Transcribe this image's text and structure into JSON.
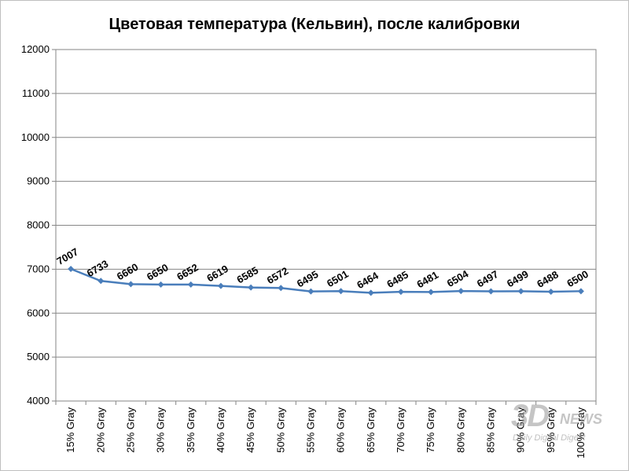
{
  "chart_data": {
    "type": "line",
    "title": "Цветовая температура (Кельвин),  после калибровки",
    "categories": [
      "15% Gray",
      "20% Gray",
      "25% Gray",
      "30% Gray",
      "35% Gray",
      "40% Gray",
      "45% Gray",
      "50% Gray",
      "55% Gray",
      "60% Gray",
      "65% Gray",
      "70% Gray",
      "75% Gray",
      "80% Gray",
      "85% Gray",
      "90% Gray",
      "95% Gray",
      "100% Gray"
    ],
    "series": [
      {
        "values": [
          7007,
          6733,
          6660,
          6650,
          6652,
          6619,
          6585,
          6572,
          6495,
          6501,
          6464,
          6485,
          6481,
          6504,
          6497,
          6499,
          6488,
          6500
        ]
      }
    ],
    "y_ticks": [
      "4000",
      "5000",
      "6000",
      "7000",
      "8000",
      "9000",
      "10000",
      "11000",
      "12000"
    ],
    "ylim": [
      4000,
      12000
    ],
    "grid": true,
    "legend": "none",
    "line_color": "#4a7ebb"
  },
  "watermark": {
    "logo": "3D",
    "news": "NEWS",
    "tagline": "Daily Digital Digest"
  }
}
